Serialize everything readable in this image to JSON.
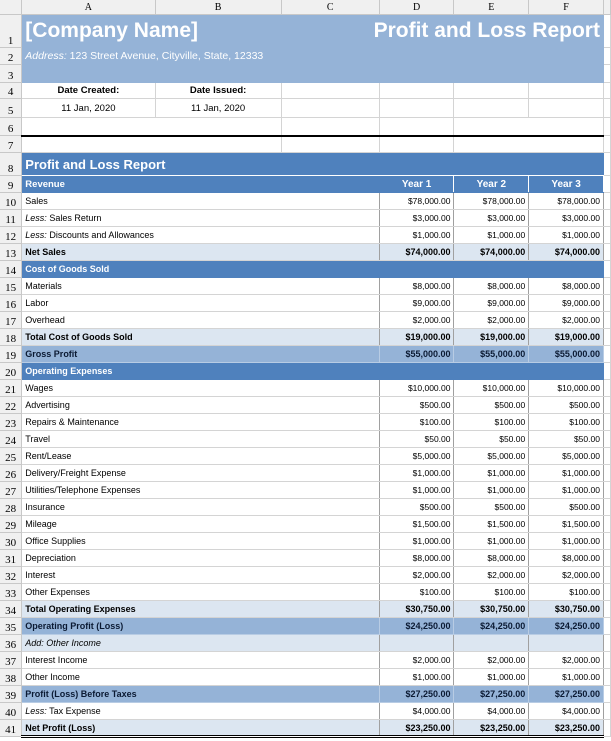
{
  "columns": [
    "A",
    "B",
    "C",
    "D",
    "E",
    "F"
  ],
  "header": {
    "company": "[Company Name]",
    "report_title": "Profit and Loss Report",
    "address_label": "Address:",
    "address": "123 Street Avenue, Cityville, State, 12333",
    "date_created_label": "Date Created:",
    "date_created": "11 Jan, 2020",
    "date_issued_label": "Date Issued:",
    "date_issued": "11 Jan, 2020"
  },
  "section_title": "Profit and Loss Report",
  "year_headers": [
    "Year 1",
    "Year 2",
    "Year 3"
  ],
  "colors": {
    "dark_blue": "#4f81bd",
    "medium_blue": "#95b3d7",
    "light_blue": "#dce6f1"
  },
  "rows": [
    {
      "n": 10,
      "type": "item",
      "label": "Sales",
      "values": [
        "$78,000.00",
        "$78,000.00",
        "$78,000.00"
      ]
    },
    {
      "n": 11,
      "type": "item",
      "prefix": "Less:",
      "label": "Sales Return",
      "values": [
        "$3,000.00",
        "$3,000.00",
        "$3,000.00"
      ]
    },
    {
      "n": 12,
      "type": "item",
      "prefix": "Less:",
      "label": "Discounts and Allowances",
      "values": [
        "$1,000.00",
        "$1,000.00",
        "$1,000.00"
      ]
    },
    {
      "n": 13,
      "type": "tot",
      "label": "Net Sales",
      "values": [
        "$74,000.00",
        "$74,000.00",
        "$74,000.00"
      ]
    },
    {
      "n": 14,
      "type": "sec",
      "label": "Cost of Goods Sold"
    },
    {
      "n": 15,
      "type": "item",
      "label": "Materials",
      "values": [
        "$8,000.00",
        "$8,000.00",
        "$8,000.00"
      ]
    },
    {
      "n": 16,
      "type": "item",
      "label": "Labor",
      "values": [
        "$9,000.00",
        "$9,000.00",
        "$9,000.00"
      ]
    },
    {
      "n": 17,
      "type": "item",
      "label": "Overhead",
      "values": [
        "$2,000.00",
        "$2,000.00",
        "$2,000.00"
      ]
    },
    {
      "n": 18,
      "type": "tot",
      "label": "Total Cost of Goods Sold",
      "values": [
        "$19,000.00",
        "$19,000.00",
        "$19,000.00"
      ]
    },
    {
      "n": 19,
      "type": "sub",
      "label": "Gross Profit",
      "values": [
        "$55,000.00",
        "$55,000.00",
        "$55,000.00"
      ]
    },
    {
      "n": 20,
      "type": "sec",
      "label": "Operating Expenses"
    },
    {
      "n": 21,
      "type": "item",
      "label": "Wages",
      "values": [
        "$10,000.00",
        "$10,000.00",
        "$10,000.00"
      ]
    },
    {
      "n": 22,
      "type": "item",
      "label": "Advertising",
      "values": [
        "$500.00",
        "$500.00",
        "$500.00"
      ]
    },
    {
      "n": 23,
      "type": "item",
      "label": "Repairs & Maintenance",
      "values": [
        "$100.00",
        "$100.00",
        "$100.00"
      ]
    },
    {
      "n": 24,
      "type": "item",
      "label": "Travel",
      "values": [
        "$50.00",
        "$50.00",
        "$50.00"
      ]
    },
    {
      "n": 25,
      "type": "item",
      "label": "Rent/Lease",
      "values": [
        "$5,000.00",
        "$5,000.00",
        "$5,000.00"
      ]
    },
    {
      "n": 26,
      "type": "item",
      "label": "Delivery/Freight Expense",
      "values": [
        "$1,000.00",
        "$1,000.00",
        "$1,000.00"
      ]
    },
    {
      "n": 27,
      "type": "item",
      "label": "Utilities/Telephone Expenses",
      "values": [
        "$1,000.00",
        "$1,000.00",
        "$1,000.00"
      ]
    },
    {
      "n": 28,
      "type": "item",
      "label": "Insurance",
      "values": [
        "$500.00",
        "$500.00",
        "$500.00"
      ]
    },
    {
      "n": 29,
      "type": "item",
      "label": "Mileage",
      "values": [
        "$1,500.00",
        "$1,500.00",
        "$1,500.00"
      ]
    },
    {
      "n": 30,
      "type": "item",
      "label": "Office Supplies",
      "values": [
        "$1,000.00",
        "$1,000.00",
        "$1,000.00"
      ]
    },
    {
      "n": 31,
      "type": "item",
      "label": "Depreciation",
      "values": [
        "$8,000.00",
        "$8,000.00",
        "$8,000.00"
      ]
    },
    {
      "n": 32,
      "type": "item",
      "label": "Interest",
      "values": [
        "$2,000.00",
        "$2,000.00",
        "$2,000.00"
      ]
    },
    {
      "n": 33,
      "type": "item",
      "label": "Other Expenses",
      "values": [
        "$100.00",
        "$100.00",
        "$100.00"
      ]
    },
    {
      "n": 34,
      "type": "tot",
      "label": "Total Operating Expenses",
      "values": [
        "$30,750.00",
        "$30,750.00",
        "$30,750.00"
      ]
    },
    {
      "n": 35,
      "type": "sub",
      "label": "Operating Profit (Loss)",
      "values": [
        "$24,250.00",
        "$24,250.00",
        "$24,250.00"
      ]
    },
    {
      "n": 36,
      "type": "note",
      "label": "Add: Other Income",
      "values": [
        "",
        "",
        ""
      ]
    },
    {
      "n": 37,
      "type": "item",
      "label": "Interest Income",
      "values": [
        "$2,000.00",
        "$2,000.00",
        "$2,000.00"
      ]
    },
    {
      "n": 38,
      "type": "item",
      "label": "Other Income",
      "values": [
        "$1,000.00",
        "$1,000.00",
        "$1,000.00"
      ]
    },
    {
      "n": 39,
      "type": "sub",
      "label": "Profit (Loss) Before Taxes",
      "values": [
        "$27,250.00",
        "$27,250.00",
        "$27,250.00"
      ]
    },
    {
      "n": 40,
      "type": "item",
      "prefix": "Less:",
      "label": "Tax Expense",
      "values": [
        "$4,000.00",
        "$4,000.00",
        "$4,000.00"
      ]
    },
    {
      "n": 41,
      "type": "tot final",
      "label": "Net Profit (Loss)",
      "values": [
        "$23,250.00",
        "$23,250.00",
        "$23,250.00"
      ]
    }
  ]
}
